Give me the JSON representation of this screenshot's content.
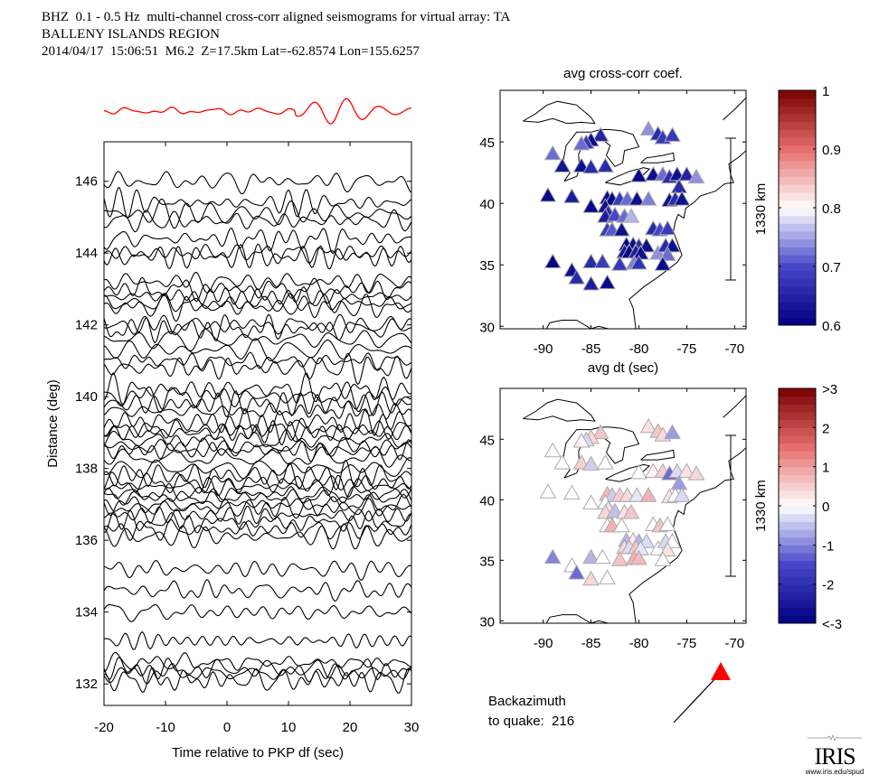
{
  "header": {
    "line1": "BHZ  0.1 - 0.5 Hz  multi-channel cross-corr aligned seismograms for virtual array: TA",
    "line2": "BALLENY ISLANDS REGION",
    "line3": "2014/04/17  15:06:51  M6.2  Z=17.5km Lat=-62.8574 Lon=155.6257"
  },
  "backazimuth": {
    "line1": "Backazimuth",
    "line2": "to quake:  216",
    "value": 216
  },
  "logo": {
    "name": "IRIS",
    "url_text": "www.iris.edu/spud"
  },
  "colors": {
    "stack_trace": "#ff0000",
    "trace": "#000000",
    "quake_marker": "#ff0000"
  },
  "chart_data": [
    {
      "type": "line",
      "name": "seismogram-record-section",
      "title": "",
      "xlabel": "Time relative to PKP df (sec)",
      "ylabel": "Distance (deg)",
      "xlim": [
        -20,
        30
      ],
      "ylim": [
        131.4,
        147.1
      ],
      "xticks": [
        -20,
        -10,
        0,
        10,
        20,
        30
      ],
      "yticks": [
        132,
        134,
        136,
        138,
        140,
        142,
        144,
        146
      ],
      "stack_trace_color": "#ff0000",
      "trace_distances": [
        146.0,
        145.4,
        145.1,
        144.9,
        144.4,
        144.0,
        143.9,
        143.2,
        143.0,
        142.8,
        142.6,
        142.5,
        142.0,
        141.9,
        141.6,
        141.3,
        141.0,
        140.8,
        140.2,
        140.0,
        139.8,
        139.6,
        139.3,
        139.1,
        139.0,
        138.8,
        138.6,
        138.5,
        138.3,
        138.0,
        137.8,
        137.6,
        137.5,
        137.3,
        137.2,
        137.0,
        136.9,
        136.7,
        136.5,
        136.3,
        136.1,
        135.2,
        134.6,
        134.0,
        133.2,
        132.6,
        132.4,
        132.3,
        132.1
      ]
    },
    {
      "type": "scatter",
      "name": "avg-cross-corr-map",
      "title": "avg cross-corr coef.",
      "xlabel": "avg dt (sec)",
      "xlim": [
        -94.5,
        -68.8
      ],
      "ylim": [
        29.8,
        49.2
      ],
      "xticks": [
        -90,
        -85,
        -80,
        -75,
        -70
      ],
      "yticks": [
        30,
        35,
        40,
        45
      ],
      "scale_bar_label": "1330 km",
      "colorbar": {
        "min": 0.6,
        "max": 1,
        "ticks": [
          "1",
          "0.9",
          "0.8",
          "0.7",
          "0.6"
        ]
      },
      "stations": [
        {
          "lon": -84.0,
          "lat": 45.5,
          "v": 0.65
        },
        {
          "lon": -85.0,
          "lat": 45.1,
          "v": 0.62
        },
        {
          "lon": -85.5,
          "lat": 44.9,
          "v": 0.68
        },
        {
          "lon": -86.0,
          "lat": 44.8,
          "v": 0.72
        },
        {
          "lon": -89.0,
          "lat": 44.0,
          "v": 0.72
        },
        {
          "lon": -88.0,
          "lat": 43.0,
          "v": 0.63
        },
        {
          "lon": -86.0,
          "lat": 43.0,
          "v": 0.62
        },
        {
          "lon": -85.0,
          "lat": 42.9,
          "v": 0.66
        },
        {
          "lon": -83.5,
          "lat": 43.0,
          "v": 0.66
        },
        {
          "lon": -79.0,
          "lat": 46.0,
          "v": 0.74
        },
        {
          "lon": -78.0,
          "lat": 45.6,
          "v": 0.66
        },
        {
          "lon": -77.5,
          "lat": 45.3,
          "v": 0.68
        },
        {
          "lon": -76.5,
          "lat": 45.5,
          "v": 0.68
        },
        {
          "lon": -80.0,
          "lat": 42.2,
          "v": 0.61
        },
        {
          "lon": -78.5,
          "lat": 42.3,
          "v": 0.62
        },
        {
          "lon": -77.5,
          "lat": 42.3,
          "v": 0.72
        },
        {
          "lon": -76.8,
          "lat": 42.1,
          "v": 0.66
        },
        {
          "lon": -76.0,
          "lat": 42.3,
          "v": 0.62
        },
        {
          "lon": -75.0,
          "lat": 42.3,
          "v": 0.65
        },
        {
          "lon": -74.0,
          "lat": 42.1,
          "v": 0.74
        },
        {
          "lon": -75.8,
          "lat": 41.3,
          "v": 0.66
        },
        {
          "lon": -89.5,
          "lat": 40.6,
          "v": 0.61
        },
        {
          "lon": -87.0,
          "lat": 40.5,
          "v": 0.64
        },
        {
          "lon": -85.0,
          "lat": 39.7,
          "v": 0.61
        },
        {
          "lon": -83.3,
          "lat": 40.4,
          "v": 0.62
        },
        {
          "lon": -82.8,
          "lat": 40.3,
          "v": 0.61
        },
        {
          "lon": -82.0,
          "lat": 40.3,
          "v": 0.68
        },
        {
          "lon": -81.2,
          "lat": 40.3,
          "v": 0.72
        },
        {
          "lon": -80.2,
          "lat": 40.3,
          "v": 0.62
        },
        {
          "lon": -79.0,
          "lat": 40.3,
          "v": 0.73
        },
        {
          "lon": -76.8,
          "lat": 40.2,
          "v": 0.62
        },
        {
          "lon": -76.2,
          "lat": 40.3,
          "v": 0.66
        },
        {
          "lon": -75.5,
          "lat": 40.3,
          "v": 0.62
        },
        {
          "lon": -83.5,
          "lat": 39.7,
          "v": 0.62
        },
        {
          "lon": -83.2,
          "lat": 39.2,
          "v": 0.66
        },
        {
          "lon": -83.5,
          "lat": 38.9,
          "v": 0.64
        },
        {
          "lon": -82.5,
          "lat": 39.0,
          "v": 0.7
        },
        {
          "lon": -81.5,
          "lat": 38.9,
          "v": 0.72
        },
        {
          "lon": -80.8,
          "lat": 38.9,
          "v": 0.76
        },
        {
          "lon": -83.3,
          "lat": 37.8,
          "v": 0.68
        },
        {
          "lon": -82.8,
          "lat": 37.8,
          "v": 0.71
        },
        {
          "lon": -81.8,
          "lat": 37.8,
          "v": 0.62
        },
        {
          "lon": -78.5,
          "lat": 37.9,
          "v": 0.66
        },
        {
          "lon": -77.8,
          "lat": 37.8,
          "v": 0.7
        },
        {
          "lon": -77.0,
          "lat": 37.9,
          "v": 0.68
        },
        {
          "lon": -81.3,
          "lat": 36.6,
          "v": 0.61
        },
        {
          "lon": -80.6,
          "lat": 36.6,
          "v": 0.62
        },
        {
          "lon": -80.0,
          "lat": 36.5,
          "v": 0.66
        },
        {
          "lon": -79.2,
          "lat": 36.5,
          "v": 0.62
        },
        {
          "lon": -81.5,
          "lat": 36.0,
          "v": 0.63
        },
        {
          "lon": -81.0,
          "lat": 36.0,
          "v": 0.61
        },
        {
          "lon": -80.3,
          "lat": 36.0,
          "v": 0.64
        },
        {
          "lon": -79.8,
          "lat": 35.9,
          "v": 0.62
        },
        {
          "lon": -78.0,
          "lat": 35.9,
          "v": 0.74
        },
        {
          "lon": -77.2,
          "lat": 36.5,
          "v": 0.66
        },
        {
          "lon": -76.5,
          "lat": 36.5,
          "v": 0.62
        },
        {
          "lon": -77.0,
          "lat": 35.8,
          "v": 0.72
        },
        {
          "lon": -89.0,
          "lat": 35.2,
          "v": 0.61
        },
        {
          "lon": -85.0,
          "lat": 35.2,
          "v": 0.66
        },
        {
          "lon": -83.8,
          "lat": 35.2,
          "v": 0.68
        },
        {
          "lon": -82.0,
          "lat": 35.0,
          "v": 0.68
        },
        {
          "lon": -80.5,
          "lat": 35.1,
          "v": 0.73
        },
        {
          "lon": -80.0,
          "lat": 35.1,
          "v": 0.67
        },
        {
          "lon": -77.5,
          "lat": 35.0,
          "v": 0.61
        },
        {
          "lon": -87.0,
          "lat": 34.5,
          "v": 0.62
        },
        {
          "lon": -86.5,
          "lat": 33.9,
          "v": 0.66
        },
        {
          "lon": -85.0,
          "lat": 33.4,
          "v": 0.64
        },
        {
          "lon": -83.3,
          "lat": 33.5,
          "v": 0.61
        }
      ]
    },
    {
      "type": "scatter",
      "name": "avg-dt-map",
      "title": "avg dt (sec)",
      "xlabel": "",
      "xlim": [
        -94.5,
        -68.8
      ],
      "ylim": [
        29.8,
        49.2
      ],
      "xticks": [
        -90,
        -85,
        -80,
        -75,
        -70
      ],
      "yticks": [
        30,
        35,
        40,
        45
      ],
      "scale_bar_label": "1330 km",
      "colorbar": {
        "min": -3,
        "max": 3,
        "ticks": [
          ">3",
          "2",
          "1",
          "0",
          "-1",
          "-2",
          "<-3"
        ]
      },
      "stations": [
        {
          "lon": -84.0,
          "lat": 45.5,
          "v": 0.6
        },
        {
          "lon": -85.0,
          "lat": 45.1,
          "v": 0.4
        },
        {
          "lon": -85.5,
          "lat": 44.9,
          "v": -0.3
        },
        {
          "lon": -86.0,
          "lat": 44.8,
          "v": 0.1
        },
        {
          "lon": -89.0,
          "lat": 44.0,
          "v": 0.0
        },
        {
          "lon": -88.0,
          "lat": 43.0,
          "v": 0.0
        },
        {
          "lon": -86.0,
          "lat": 43.0,
          "v": 0.5
        },
        {
          "lon": -85.0,
          "lat": 42.9,
          "v": -0.4
        },
        {
          "lon": -83.5,
          "lat": 43.0,
          "v": 0.0
        },
        {
          "lon": -79.0,
          "lat": 46.0,
          "v": 0.3
        },
        {
          "lon": -78.0,
          "lat": 45.6,
          "v": 0.6
        },
        {
          "lon": -77.5,
          "lat": 45.3,
          "v": 0.4
        },
        {
          "lon": -76.5,
          "lat": 45.5,
          "v": -0.8
        },
        {
          "lon": -80.0,
          "lat": 42.2,
          "v": 0.0
        },
        {
          "lon": -78.5,
          "lat": 42.3,
          "v": 0.1
        },
        {
          "lon": -77.5,
          "lat": 42.3,
          "v": 0.5
        },
        {
          "lon": -76.8,
          "lat": 42.1,
          "v": -1.2
        },
        {
          "lon": -76.0,
          "lat": 42.3,
          "v": -0.3
        },
        {
          "lon": -75.0,
          "lat": 42.3,
          "v": 0.3
        },
        {
          "lon": -74.0,
          "lat": 42.1,
          "v": 0.4
        },
        {
          "lon": -75.8,
          "lat": 41.3,
          "v": -0.8
        },
        {
          "lon": -89.5,
          "lat": 40.6,
          "v": 0.0
        },
        {
          "lon": -87.0,
          "lat": 40.5,
          "v": 0.0
        },
        {
          "lon": -85.0,
          "lat": 39.7,
          "v": 0.0
        },
        {
          "lon": -83.3,
          "lat": 40.4,
          "v": 0.7
        },
        {
          "lon": -82.8,
          "lat": 40.3,
          "v": -0.4
        },
        {
          "lon": -82.0,
          "lat": 40.3,
          "v": 0.5
        },
        {
          "lon": -81.2,
          "lat": 40.3,
          "v": 0.4
        },
        {
          "lon": -80.2,
          "lat": 40.3,
          "v": -0.2
        },
        {
          "lon": -79.0,
          "lat": 40.3,
          "v": 0.8
        },
        {
          "lon": -76.8,
          "lat": 40.2,
          "v": 0.3
        },
        {
          "lon": -76.2,
          "lat": 40.3,
          "v": 0.0
        },
        {
          "lon": -75.5,
          "lat": 40.3,
          "v": -0.3
        },
        {
          "lon": -83.5,
          "lat": 39.7,
          "v": 0.0
        },
        {
          "lon": -83.2,
          "lat": 39.2,
          "v": 0.3
        },
        {
          "lon": -83.5,
          "lat": 38.9,
          "v": 0.4
        },
        {
          "lon": -82.5,
          "lat": 39.0,
          "v": -0.5
        },
        {
          "lon": -81.5,
          "lat": 38.9,
          "v": 0.3
        },
        {
          "lon": -80.8,
          "lat": 38.9,
          "v": 0.6
        },
        {
          "lon": -83.3,
          "lat": 37.8,
          "v": 0.0
        },
        {
          "lon": -82.8,
          "lat": 37.8,
          "v": 0.8
        },
        {
          "lon": -81.8,
          "lat": 37.8,
          "v": 0.0
        },
        {
          "lon": -78.5,
          "lat": 37.9,
          "v": 0.0
        },
        {
          "lon": -77.8,
          "lat": 37.8,
          "v": 0.6
        },
        {
          "lon": -77.0,
          "lat": 37.9,
          "v": 0.0
        },
        {
          "lon": -81.3,
          "lat": 36.6,
          "v": -0.6
        },
        {
          "lon": -80.6,
          "lat": 36.6,
          "v": 0.2
        },
        {
          "lon": -80.0,
          "lat": 36.5,
          "v": -0.6
        },
        {
          "lon": -79.2,
          "lat": 36.5,
          "v": -0.3
        },
        {
          "lon": -81.5,
          "lat": 36.0,
          "v": 0.4
        },
        {
          "lon": -81.0,
          "lat": 36.0,
          "v": -0.3
        },
        {
          "lon": -80.3,
          "lat": 36.0,
          "v": 0.6
        },
        {
          "lon": -79.8,
          "lat": 35.9,
          "v": -0.2
        },
        {
          "lon": -78.0,
          "lat": 35.9,
          "v": 0.0
        },
        {
          "lon": -77.2,
          "lat": 36.5,
          "v": -0.3
        },
        {
          "lon": -76.5,
          "lat": 36.5,
          "v": 0.0
        },
        {
          "lon": -77.0,
          "lat": 35.8,
          "v": 0.3
        },
        {
          "lon": -89.0,
          "lat": 35.2,
          "v": -1.0
        },
        {
          "lon": -85.0,
          "lat": 35.2,
          "v": -0.6
        },
        {
          "lon": -83.8,
          "lat": 35.2,
          "v": 0.0
        },
        {
          "lon": -82.0,
          "lat": 35.0,
          "v": 0.6
        },
        {
          "lon": -80.5,
          "lat": 35.1,
          "v": 0.8
        },
        {
          "lon": -80.0,
          "lat": 35.1,
          "v": 0.7
        },
        {
          "lon": -77.5,
          "lat": 35.0,
          "v": 0.0
        },
        {
          "lon": -87.0,
          "lat": 34.5,
          "v": 0.0
        },
        {
          "lon": -86.5,
          "lat": 33.9,
          "v": -1.2
        },
        {
          "lon": -85.0,
          "lat": 33.4,
          "v": 0.4
        },
        {
          "lon": -83.3,
          "lat": 33.5,
          "v": 0.0
        }
      ]
    }
  ]
}
